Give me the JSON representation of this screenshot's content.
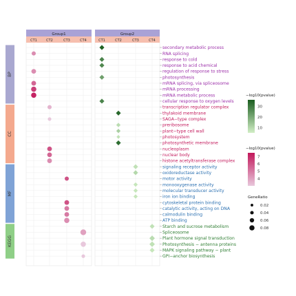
{
  "chart_data": {
    "type": "dotplot",
    "groups": [
      {
        "name": "Group1",
        "columns": [
          "CT1",
          "CT2",
          "CT3",
          "CT4"
        ]
      },
      {
        "name": "Group2",
        "columns": [
          "CT1",
          "CT2",
          "CT3",
          "CT4"
        ]
      }
    ],
    "categories": [
      {
        "name": "BP",
        "color": "#a9a8d0"
      },
      {
        "name": "CC",
        "color": "#f4a98e"
      },
      {
        "name": "MF",
        "color": "#7fa3d6"
      },
      {
        "name": "KEGG",
        "color": "#8fcf87"
      }
    ],
    "terms": [
      {
        "label": "secondary metabolic process",
        "category": "BP",
        "color": "#9b2ea8"
      },
      {
        "label": "RNA splicing",
        "category": "BP",
        "color": "#9b2ea8"
      },
      {
        "label": "response to cold",
        "category": "BP",
        "color": "#9b2ea8"
      },
      {
        "label": "response to acid chemical",
        "category": "BP",
        "color": "#9b2ea8"
      },
      {
        "label": "regulation of response to stress",
        "category": "BP",
        "color": "#9b2ea8"
      },
      {
        "label": "photosynthesis",
        "category": "BP",
        "color": "#9b2ea8"
      },
      {
        "label": "mRNA splicing, via spliceosome",
        "category": "BP",
        "color": "#9b2ea8"
      },
      {
        "label": "mRNA processing",
        "category": "BP",
        "color": "#9b2ea8"
      },
      {
        "label": "mRNA metabolic process",
        "category": "BP",
        "color": "#9b2ea8"
      },
      {
        "label": "cellular response to oxygen levels",
        "category": "BP",
        "color": "#9b2ea8"
      },
      {
        "label": "transcription regulator complex",
        "category": "CC",
        "color": "#c2185b"
      },
      {
        "label": "thylakoid membrane",
        "category": "CC",
        "color": "#c2185b"
      },
      {
        "label": "SAGA−type complex",
        "category": "CC",
        "color": "#c2185b"
      },
      {
        "label": "preribosome",
        "category": "CC",
        "color": "#c2185b"
      },
      {
        "label": "plant−type cell wall",
        "category": "CC",
        "color": "#c2185b"
      },
      {
        "label": "photosystem",
        "category": "CC",
        "color": "#c2185b"
      },
      {
        "label": "photosynthetic membrane",
        "category": "CC",
        "color": "#c2185b"
      },
      {
        "label": "nucleoplasm",
        "category": "CC",
        "color": "#c2185b"
      },
      {
        "label": "nuclear body",
        "category": "CC",
        "color": "#c2185b"
      },
      {
        "label": "histone acetyltransferase complex",
        "category": "CC",
        "color": "#c2185b"
      },
      {
        "label": "signaling receptor activity",
        "category": "MF",
        "color": "#2a6fb0"
      },
      {
        "label": "oxidoreductase activity",
        "category": "MF",
        "color": "#2a6fb0"
      },
      {
        "label": "motor activity",
        "category": "MF",
        "color": "#2a6fb0"
      },
      {
        "label": "monooxygenase activity",
        "category": "MF",
        "color": "#2a6fb0"
      },
      {
        "label": "molecular transducer activity",
        "category": "MF",
        "color": "#2a6fb0"
      },
      {
        "label": "iron ion binding",
        "category": "MF",
        "color": "#2a6fb0"
      },
      {
        "label": "cytoskeletal protein binding",
        "category": "MF",
        "color": "#2a6fb0"
      },
      {
        "label": "catalytic activity, acting on DNA",
        "category": "MF",
        "color": "#2a6fb0"
      },
      {
        "label": "calmodulin binding",
        "category": "MF",
        "color": "#2a6fb0"
      },
      {
        "label": "ATP binding",
        "category": "MF",
        "color": "#2a6fb0"
      },
      {
        "label": "Starch and sucrose metabolism",
        "category": "KEGG",
        "color": "#2e7d32"
      },
      {
        "label": "Spliceosome",
        "category": "KEGG",
        "color": "#2e7d32"
      },
      {
        "label": "Plant hormone signal transduction",
        "category": "KEGG",
        "color": "#2e7d32"
      },
      {
        "label": "Photosynthesis − antenna proteins",
        "category": "KEGG",
        "color": "#2e7d32"
      },
      {
        "label": "MAPK signaling pathway − plant",
        "category": "KEGG",
        "color": "#2e7d32"
      },
      {
        "label": "GPI−anchor biosynthesis",
        "category": "KEGG",
        "color": "#2e7d32"
      }
    ],
    "group1_points": [
      {
        "term": "RNA splicing",
        "col": "CT1",
        "log10p": 4.5,
        "ratio": 0.03
      },
      {
        "term": "regulation of response to stress",
        "col": "CT1",
        "log10p": 4.5,
        "ratio": 0.04
      },
      {
        "term": "mRNA splicing, via spliceosome",
        "col": "CT1",
        "log10p": 5.5,
        "ratio": 0.04
      },
      {
        "term": "mRNA processing",
        "col": "CT1",
        "log10p": 6.5,
        "ratio": 0.05
      },
      {
        "term": "mRNA metabolic process",
        "col": "CT1",
        "log10p": 7.2,
        "ratio": 0.05
      },
      {
        "term": "transcription regulator complex",
        "col": "CT2",
        "log10p": 3.5,
        "ratio": 0.03
      },
      {
        "term": "SAGA−type complex",
        "col": "CT2",
        "log10p": 3.0,
        "ratio": 0.02
      },
      {
        "term": "nucleoplasm",
        "col": "CT2",
        "log10p": 6.0,
        "ratio": 0.04
      },
      {
        "term": "nuclear body",
        "col": "CT2",
        "log10p": 5.5,
        "ratio": 0.04
      },
      {
        "term": "histone acetyltransferase complex",
        "col": "CT2",
        "log10p": 4.5,
        "ratio": 0.04
      },
      {
        "term": "motor activity",
        "col": "CT3",
        "log10p": 6.0,
        "ratio": 0.03
      },
      {
        "term": "cytoskeletal protein binding",
        "col": "CT3",
        "log10p": 6.0,
        "ratio": 0.04
      },
      {
        "term": "catalytic activity, acting on DNA",
        "col": "CT3",
        "log10p": 5.0,
        "ratio": 0.04
      },
      {
        "term": "calmodulin binding",
        "col": "CT3",
        "log10p": 5.0,
        "ratio": 0.04
      },
      {
        "term": "ATP binding",
        "col": "CT3",
        "log10p": 4.5,
        "ratio": 0.05
      },
      {
        "term": "Spliceosome",
        "col": "CT4",
        "log10p": 4.0,
        "ratio": 0.06
      },
      {
        "term": "Photosynthesis − antenna proteins",
        "col": "CT4",
        "log10p": 3.0,
        "ratio": 0.05
      },
      {
        "term": "GPI−anchor biosynthesis",
        "col": "CT4",
        "log10p": 3.0,
        "ratio": 0.02
      }
    ],
    "group2_points": [
      {
        "term": "secondary metabolic process",
        "col": "CT1",
        "log10p": 35,
        "ratio": 0.04
      },
      {
        "term": "response to cold",
        "col": "CT1",
        "log10p": 28,
        "ratio": 0.04
      },
      {
        "term": "response to acid chemical",
        "col": "CT1",
        "log10p": 27,
        "ratio": 0.04
      },
      {
        "term": "photosynthesis",
        "col": "CT1",
        "log10p": 22,
        "ratio": 0.04
      },
      {
        "term": "cellular response to oxygen levels",
        "col": "CT1",
        "log10p": 28,
        "ratio": 0.04
      },
      {
        "term": "thylakoid membrane",
        "col": "CT2",
        "log10p": 34,
        "ratio": 0.04
      },
      {
        "term": "preribosome",
        "col": "CT2",
        "log10p": 9,
        "ratio": 0.03
      },
      {
        "term": "plant−type cell wall",
        "col": "CT2",
        "log10p": 12,
        "ratio": 0.03
      },
      {
        "term": "photosystem",
        "col": "CT2",
        "log10p": 8,
        "ratio": 0.02
      },
      {
        "term": "photosynthetic membrane",
        "col": "CT2",
        "log10p": 33,
        "ratio": 0.04
      },
      {
        "term": "signaling receptor activity",
        "col": "CT3",
        "log10p": 8,
        "ratio": 0.04
      },
      {
        "term": "oxidoreductase activity",
        "col": "CT3",
        "log10p": 10,
        "ratio": 0.04
      },
      {
        "term": "monooxygenase activity",
        "col": "CT3",
        "log10p": 7,
        "ratio": 0.03
      },
      {
        "term": "molecular transducer activity",
        "col": "CT3",
        "log10p": 7,
        "ratio": 0.03
      },
      {
        "term": "iron ion binding",
        "col": "CT3",
        "log10p": 7,
        "ratio": 0.03
      },
      {
        "term": "Starch and sucrose metabolism",
        "col": "CT4",
        "log10p": 8,
        "ratio": 0.04
      },
      {
        "term": "Plant hormone signal transduction",
        "col": "CT4",
        "log10p": 9,
        "ratio": 0.05
      },
      {
        "term": "Photosynthesis − antenna proteins",
        "col": "CT4",
        "log10p": 8,
        "ratio": 0.05
      },
      {
        "term": "MAPK signaling pathway − plant",
        "col": "CT4",
        "log10p": 7,
        "ratio": 0.04
      }
    ],
    "legend_green": {
      "title": "−log10(pvalue)",
      "ticks": [
        10,
        20,
        30
      ],
      "range": [
        5,
        36
      ],
      "low": "#d2efc6",
      "high": "#1b5e20"
    },
    "legend_pink": {
      "title": "−log10(pvalue)",
      "ticks": [
        4,
        5,
        6,
        7
      ],
      "range": [
        3,
        7.5
      ],
      "low": "#e8c8dc",
      "high": "#c2185b"
    },
    "legend_size": {
      "title": "GeneRatio",
      "values": [
        0.02,
        0.04,
        0.06,
        0.08
      ]
    }
  }
}
